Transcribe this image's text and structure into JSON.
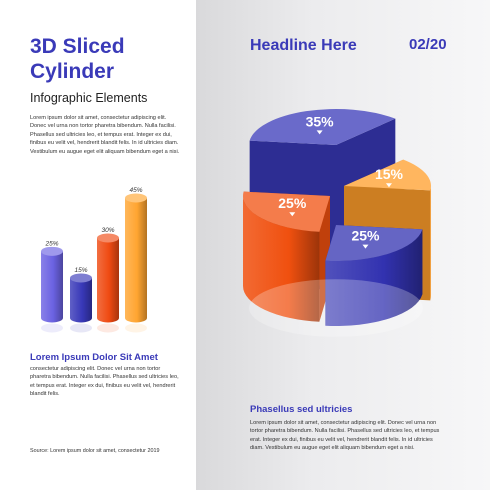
{
  "left": {
    "title": "3D Sliced Cylinder",
    "subtitle": "Infographic Elements",
    "paragraph": "Lorem ipsum dolor sit amet, consectetur adipiscing elit. Donec vel urna non tortor pharetra bibendum. Nulla facilisi. Phasellus sed ultricies leo, et tempus erat. Integer ex dui, finibus eu velit vel, hendrerit blandit felis. In id ultricies diam. Vestibulum eu augue eget elit aliquam bibendum eget a nisi.",
    "section_heading": "Lorem Ipsum Dolor Sit Amet",
    "section_paragraph": "consectetur adipiscing elit. Donec vel urna non tortor pharetra bibendum. Nulla facilisi. Phasellus sed ultricies leo, et tempus erat. Integer ex dui, finibus eu velit vel, hendrerit blandit felis.",
    "source": "Source: Lorem ipsum dolor sit amet, consectetur 2019"
  },
  "right": {
    "headline": "Headline Here",
    "page_number": "02/20",
    "section_heading": "Phasellus sed ultricies",
    "section_paragraph": "Lorem ipsum dolor sit amet, consectetur adipiscing elit. Donec vel urna non tortor pharetra bibendum. Nulla facilisi. Phasellus sed ultricies leo, et tempus erat. Integer ex dui, finibus eu velit vel, hendrerit blandit felis. In id ultricies diam. Vestibulum eu augue eget elit aliquam bibendum eget a nisi."
  },
  "colors": {
    "blue": "#3838b8",
    "purple": "#6b62e2",
    "orange": "#ff8a1e",
    "red_orange": "#ef4a12",
    "title_blue": "#3a3ab8"
  },
  "chart_data": [
    {
      "type": "pie",
      "title": "",
      "slices": [
        {
          "label": "35%",
          "value": 35,
          "color": "#3838b8"
        },
        {
          "label": "15%",
          "value": 15,
          "color": "#ff9d2a"
        },
        {
          "label": "25%",
          "value": 25,
          "color": "#3232b0"
        },
        {
          "label": "25%",
          "value": 25,
          "color": "#f0500f"
        }
      ]
    },
    {
      "type": "bar",
      "title": "",
      "categories": [
        "25%",
        "15%",
        "30%",
        "45%"
      ],
      "values": [
        25,
        15,
        30,
        45
      ],
      "colors": [
        "#6b62e2",
        "#3838b8",
        "#ef4a12",
        "#ffa531"
      ]
    }
  ]
}
